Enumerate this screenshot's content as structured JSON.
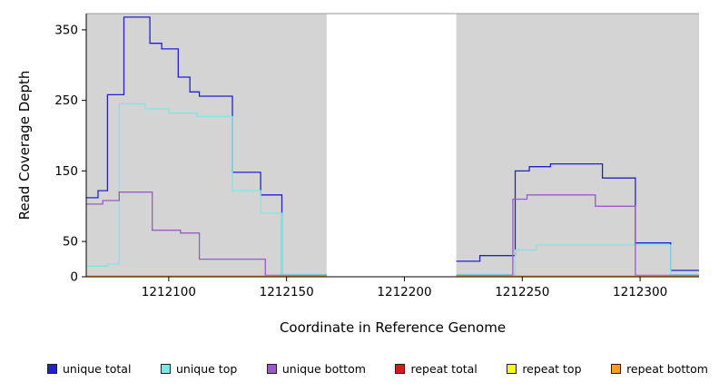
{
  "chart_data": {
    "type": "line",
    "title": "",
    "xlabel": "Coordinate in Reference Genome",
    "ylabel": "Read Coverage Depth",
    "xlim": [
      1212065,
      1212325
    ],
    "ylim": [
      0,
      373
    ],
    "x_ticks": [
      1212100,
      1212150,
      1212200,
      1212250,
      1212300
    ],
    "y_ticks": [
      0,
      50,
      150,
      250,
      350
    ],
    "grid": false,
    "legend_position": "bottom",
    "colors": {
      "plot_background": "#d4d4d4",
      "frame": "#999999",
      "axis": "#000000"
    },
    "shaded_regions": [
      [
        1212065,
        1212167
      ],
      [
        1212222,
        1212325
      ]
    ],
    "gap_region": [
      1212167,
      1212222
    ],
    "series": [
      {
        "name": "unique total",
        "color": "#2222cc",
        "segments": [
          [
            [
              1212065,
              112
            ],
            [
              1212070,
              122
            ],
            [
              1212074,
              258
            ],
            [
              1212081,
              368
            ],
            [
              1212092,
              331
            ],
            [
              1212097,
              323
            ],
            [
              1212104,
              283
            ],
            [
              1212109,
              262
            ],
            [
              1212113,
              256
            ],
            [
              1212127,
              148
            ],
            [
              1212139,
              116
            ],
            [
              1212148,
              3
            ],
            [
              1212167,
              3
            ]
          ],
          [
            [
              1212222,
              22
            ],
            [
              1212232,
              30
            ],
            [
              1212247,
              150
            ],
            [
              1212253,
              156
            ],
            [
              1212262,
              160
            ],
            [
              1212284,
              140
            ],
            [
              1212298,
              48
            ],
            [
              1212313,
              9
            ],
            [
              1212325,
              9
            ]
          ]
        ]
      },
      {
        "name": "unique top",
        "color": "#7fe6e6",
        "segments": [
          [
            [
              1212065,
              15
            ],
            [
              1212074,
              18
            ],
            [
              1212079,
              245
            ],
            [
              1212090,
              238
            ],
            [
              1212100,
              232
            ],
            [
              1212112,
              227
            ],
            [
              1212127,
              122
            ],
            [
              1212139,
              90
            ],
            [
              1212148,
              3
            ],
            [
              1212167,
              3
            ]
          ],
          [
            [
              1212222,
              3
            ],
            [
              1212247,
              38
            ],
            [
              1212256,
              45
            ],
            [
              1212310,
              45
            ],
            [
              1212313,
              3
            ],
            [
              1212325,
              3
            ]
          ]
        ]
      },
      {
        "name": "unique bottom",
        "color": "#9b59c9",
        "segments": [
          [
            [
              1212065,
              103
            ],
            [
              1212072,
              108
            ],
            [
              1212079,
              120
            ],
            [
              1212093,
              66
            ],
            [
              1212105,
              62
            ],
            [
              1212113,
              25
            ],
            [
              1212141,
              2
            ],
            [
              1212167,
              2
            ]
          ],
          [
            [
              1212222,
              2
            ],
            [
              1212246,
              110
            ],
            [
              1212252,
              116
            ],
            [
              1212281,
              100
            ],
            [
              1212298,
              2
            ],
            [
              1212325,
              2
            ]
          ]
        ]
      },
      {
        "name": "repeat total",
        "color": "#cc2020",
        "segments": [
          [
            [
              1212065,
              1
            ],
            [
              1212167,
              1
            ]
          ],
          [
            [
              1212222,
              1
            ],
            [
              1212325,
              1
            ]
          ]
        ]
      },
      {
        "name": "repeat top",
        "color": "#f5f520",
        "segments": [
          [
            [
              1212065,
              1
            ],
            [
              1212167,
              1
            ]
          ],
          [
            [
              1212222,
              1
            ],
            [
              1212325,
              1
            ]
          ]
        ]
      },
      {
        "name": "repeat bottom",
        "color": "#ff9d1e",
        "segments": [
          [
            [
              1212065,
              1
            ],
            [
              1212167,
              1
            ]
          ],
          [
            [
              1212222,
              1
            ],
            [
              1212325,
              1
            ]
          ]
        ]
      }
    ]
  }
}
